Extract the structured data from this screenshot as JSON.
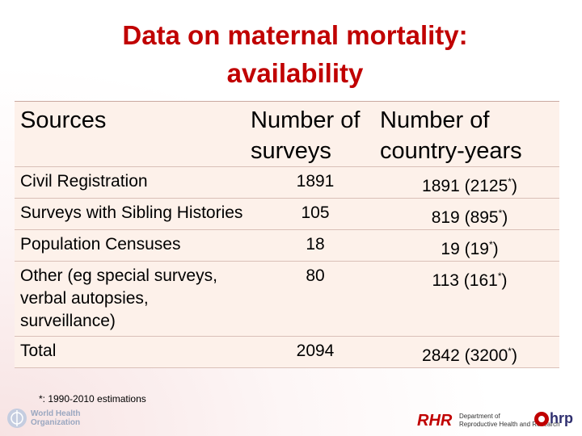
{
  "title": [
    "Data on maternal mortality:",
    "availability"
  ],
  "table": {
    "header": [
      "Sources",
      "Number of surveys",
      "Number of country-years"
    ],
    "rows": [
      [
        "Civil Registration",
        "1891",
        [
          "1891 (2125",
          "*",
          ")"
        ]
      ],
      [
        "Surveys with Sibling Histories",
        "105",
        [
          "819 (895",
          "*",
          ")"
        ]
      ],
      [
        "Population Censuses",
        "18",
        [
          "19 (19",
          "*",
          ")"
        ]
      ],
      [
        "Other (eg special surveys, verbal autopsies, surveillance)",
        "80",
        [
          "113 (161",
          "*",
          ")"
        ]
      ],
      [
        "Total",
        "2094",
        [
          "2842 (3200",
          "*",
          ")"
        ]
      ]
    ]
  },
  "footnote": "*: 1990-2010 estimations",
  "logos": {
    "who": [
      "World Health",
      "Organization"
    ],
    "rhr": "RHR",
    "department": [
      "Department of",
      "Reproductive Health and Research"
    ],
    "hrp": "hrp"
  }
}
